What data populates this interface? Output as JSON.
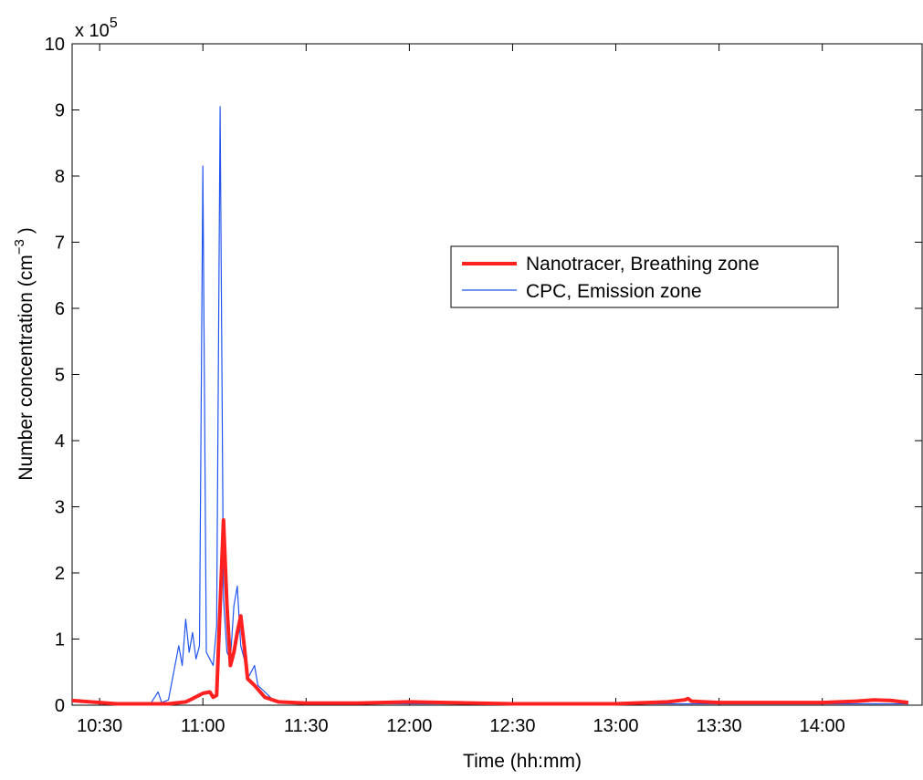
{
  "chart_data": {
    "type": "line",
    "title": "",
    "xlabel": "Time (hh:mm)",
    "ylabel": "Number concentration (cm",
    "ylabel_superscript": "−3",
    "ylabel_suffix": " )",
    "y_multiplier_label": "x 10",
    "y_multiplier_exponent": "5",
    "xlim": [
      "10:22",
      "14:29"
    ],
    "ylim": [
      0,
      10
    ],
    "x_ticks": [
      "10:30",
      "11:00",
      "11:30",
      "12:00",
      "12:30",
      "13:00",
      "13:30",
      "14:00"
    ],
    "y_ticks": [
      0,
      1,
      2,
      3,
      4,
      5,
      6,
      7,
      8,
      9,
      10
    ],
    "y_unit_note": "values in units of 10^5 cm^-3",
    "grid": false,
    "legend_position": "upper-right",
    "series": [
      {
        "name": "Nanotracer, Breathing zone",
        "color": "#ff2020",
        "x": [
          "10:22",
          "10:35",
          "10:50",
          "10:55",
          "10:57",
          "11:00",
          "11:02",
          "11:03",
          "11:04",
          "11:05",
          "11:06",
          "11:07",
          "11:08",
          "11:09",
          "11:10",
          "11:11",
          "11:12",
          "11:13",
          "11:15",
          "11:18",
          "11:22",
          "11:30",
          "11:45",
          "12:00",
          "12:30",
          "13:00",
          "13:05",
          "13:15",
          "13:20",
          "13:21",
          "13:22",
          "13:30",
          "13:45",
          "14:00",
          "14:10",
          "14:15",
          "14:20",
          "14:25"
        ],
        "values": [
          0.07,
          0.02,
          0.02,
          0.05,
          0.1,
          0.18,
          0.2,
          0.12,
          0.15,
          1.5,
          2.8,
          1.5,
          0.6,
          0.8,
          1.1,
          1.35,
          0.9,
          0.4,
          0.3,
          0.12,
          0.05,
          0.03,
          0.03,
          0.05,
          0.02,
          0.02,
          0.03,
          0.05,
          0.08,
          0.1,
          0.06,
          0.04,
          0.04,
          0.04,
          0.06,
          0.08,
          0.07,
          0.04
        ]
      },
      {
        "name": "CPC, Emission zone",
        "color": "#2255ee",
        "x": [
          "10:22",
          "10:35",
          "10:45",
          "10:47",
          "10:48",
          "10:50",
          "10:53",
          "10:54",
          "10:55",
          "10:56",
          "10:57",
          "10:58",
          "10:59",
          "11:00",
          "11:01",
          "11:02",
          "11:03",
          "11:04",
          "11:05",
          "11:06",
          "11:07",
          "11:08",
          "11:09",
          "11:10",
          "11:11",
          "11:12",
          "11:13",
          "11:14",
          "11:15",
          "11:16",
          "11:18",
          "11:20",
          "11:22",
          "11:25",
          "11:30",
          "12:00",
          "12:30",
          "13:00",
          "13:30",
          "14:00",
          "14:25"
        ],
        "values": [
          0.07,
          0.03,
          0.04,
          0.2,
          0.04,
          0.08,
          0.9,
          0.6,
          1.3,
          0.8,
          1.1,
          0.7,
          0.9,
          8.15,
          0.8,
          0.7,
          0.6,
          1.2,
          9.05,
          1.6,
          0.8,
          0.7,
          1.5,
          1.8,
          0.9,
          0.7,
          0.4,
          0.5,
          0.6,
          0.3,
          0.2,
          0.1,
          0.06,
          0.04,
          0.03,
          0.02,
          0.02,
          0.02,
          0.02,
          0.02,
          0.02
        ]
      }
    ]
  }
}
